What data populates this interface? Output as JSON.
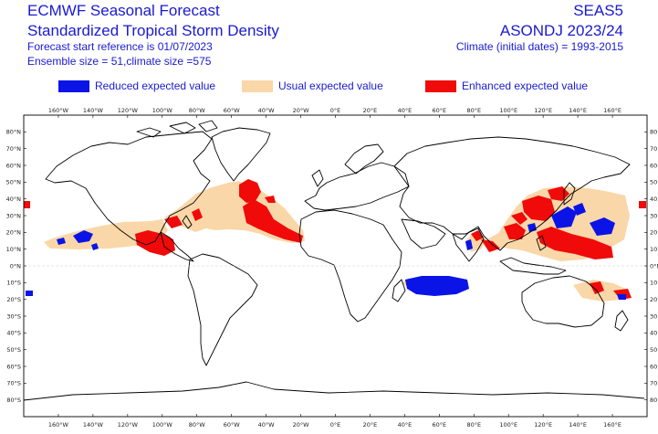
{
  "header": {
    "title_line1": "ECMWF Seasonal Forecast",
    "title_line2": "Standardized Tropical Storm Density",
    "start_reference": "Forecast start reference is 01/07/2023",
    "ensemble_size": "Ensemble size = 51,climate size =575",
    "model": "SEAS5",
    "period": "ASONDJ 2023/24",
    "climate": "Climate (initial dates) = 1993-2015"
  },
  "legend": [
    {
      "label": "Reduced expected value",
      "color": "#0a14e6"
    },
    {
      "label": "Usual expected value",
      "color": "#fad7a8"
    },
    {
      "label": "Enhanced expected value",
      "color": "#f00a0a"
    }
  ],
  "axes": {
    "lon_labels": [
      "160°W",
      "140°W",
      "120°W",
      "100°W",
      "80°W",
      "60°W",
      "40°W",
      "20°W",
      "0°E",
      "20°E",
      "40°E",
      "60°E",
      "80°E",
      "100°E",
      "120°E",
      "140°E",
      "160°E"
    ],
    "lat_labels": [
      "80°N",
      "70°N",
      "60°N",
      "50°N",
      "40°N",
      "30°N",
      "20°N",
      "10°N",
      "0°N",
      "10°S",
      "20°S",
      "30°S",
      "40°S",
      "50°S",
      "60°S",
      "70°S",
      "80°S"
    ]
  }
}
